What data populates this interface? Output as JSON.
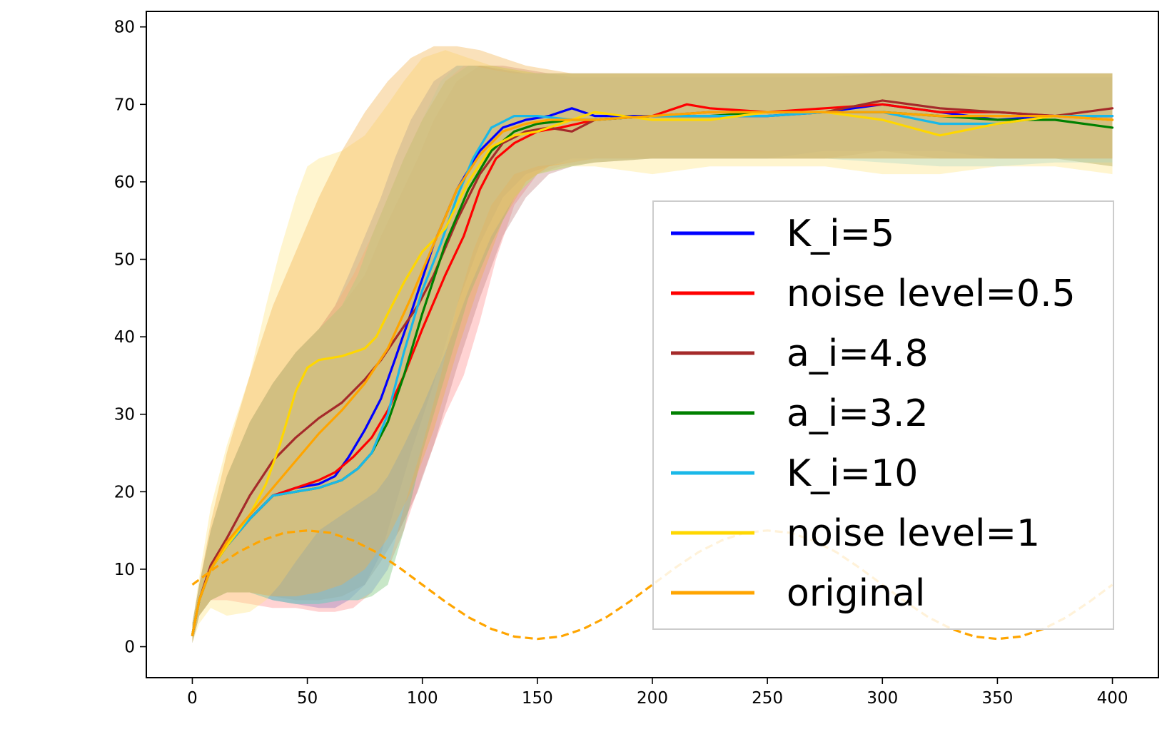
{
  "chart_data": {
    "type": "line",
    "title": "",
    "xlabel": "",
    "ylabel": "",
    "xlim": [
      -20,
      420
    ],
    "ylim": [
      -4,
      82
    ],
    "xticks": [
      0,
      50,
      100,
      150,
      200,
      250,
      300,
      350,
      400
    ],
    "yticks": [
      0,
      10,
      20,
      30,
      40,
      50,
      60,
      70,
      80
    ],
    "legend_position": "lower-right",
    "grid": false,
    "series": [
      {
        "name": "K_i=5",
        "color": "#0000ff",
        "band_color": "#4f6fe0",
        "x": [
          0,
          3,
          8,
          15,
          25,
          35,
          45,
          55,
          62,
          68,
          75,
          82,
          88,
          95,
          105,
          115,
          125,
          135,
          145,
          155,
          165,
          175,
          200,
          225,
          250,
          275,
          300,
          325,
          350,
          375,
          400
        ],
        "y": [
          1.5,
          6,
          10,
          13,
          16.5,
          19.5,
          20.5,
          21,
          22,
          24.5,
          28,
          32,
          37,
          43,
          52,
          59,
          64,
          67,
          68,
          68.5,
          69.5,
          68.5,
          68.5,
          68.5,
          68.5,
          69,
          70,
          69,
          68,
          68.5,
          68.5
        ],
        "lower": [
          0.5,
          4,
          6,
          7,
          7,
          6,
          5.5,
          5,
          5,
          6,
          8,
          12,
          18,
          25,
          34,
          44,
          52,
          58,
          61,
          62,
          63,
          63,
          63,
          63,
          63,
          64,
          64,
          64,
          63,
          63,
          63
        ],
        "upper": [
          3,
          8,
          15,
          22,
          29,
          34,
          38,
          41,
          44,
          48,
          53,
          58,
          63,
          68,
          73,
          75,
          75,
          74.5,
          74,
          74,
          73.5,
          73.5,
          73.5,
          73.5,
          73.5,
          73.5,
          74,
          74,
          73.5,
          73.5,
          73.5
        ]
      },
      {
        "name": "noise level=0.5",
        "color": "#ff0000",
        "band_color": "#ff8c8c",
        "x": [
          0,
          3,
          8,
          15,
          25,
          35,
          45,
          55,
          62,
          70,
          78,
          85,
          92,
          100,
          110,
          118,
          125,
          132,
          140,
          150,
          160,
          175,
          200,
          215,
          225,
          250,
          275,
          300,
          325,
          350,
          375,
          400
        ],
        "y": [
          1.5,
          6,
          10,
          13,
          16.5,
          19.5,
          20.5,
          21.5,
          22.5,
          24.5,
          27,
          30.5,
          35,
          41,
          48,
          53,
          59,
          63,
          65,
          66.5,
          67,
          68,
          68.5,
          70,
          69.5,
          69,
          69.5,
          70,
          69,
          69,
          68.5,
          68
        ],
        "lower": [
          0.5,
          4,
          6,
          6,
          5.5,
          5,
          5,
          4.5,
          4.5,
          5,
          7,
          10,
          15,
          22,
          30,
          35,
          42,
          50,
          57,
          61,
          62,
          62.5,
          63,
          63,
          63,
          63,
          63,
          63,
          63,
          63,
          63,
          62
        ],
        "upper": [
          3,
          8,
          15,
          22,
          29,
          34,
          38,
          41,
          44,
          48,
          53,
          58,
          63,
          68,
          73,
          75,
          75,
          74.5,
          74,
          74,
          74,
          74,
          74,
          74,
          74,
          74,
          74,
          74,
          74,
          74,
          74,
          74
        ]
      },
      {
        "name": "a_i=4.8",
        "color": "#a52a2a",
        "band_color": "#c08080",
        "x": [
          0,
          3,
          8,
          15,
          25,
          35,
          45,
          55,
          65,
          75,
          82,
          90,
          98,
          105,
          115,
          125,
          135,
          145,
          155,
          165,
          175,
          200,
          225,
          250,
          275,
          300,
          325,
          350,
          375,
          400
        ],
        "y": [
          1.5,
          6,
          10.5,
          14,
          19.5,
          24,
          27,
          29.5,
          31.5,
          34.5,
          37,
          40.5,
          44,
          48,
          55,
          61,
          65,
          66.5,
          67,
          66.5,
          68,
          68.5,
          69,
          69,
          69,
          70.5,
          69.5,
          69,
          68.5,
          69.5
        ],
        "lower": [
          0.5,
          4,
          6,
          7,
          7,
          6.5,
          6,
          6,
          6.5,
          8,
          11,
          15,
          20,
          26,
          36,
          45,
          53,
          58,
          61,
          62,
          62.5,
          63,
          63,
          63,
          63,
          64,
          63,
          63,
          63,
          63
        ],
        "upper": [
          3,
          8,
          15,
          22,
          29,
          34,
          38,
          41,
          44,
          48,
          53,
          58,
          63,
          68,
          73,
          75,
          75,
          74.5,
          74,
          74,
          74,
          74,
          74,
          74,
          74,
          74,
          74,
          74,
          74,
          74
        ]
      },
      {
        "name": "a_i=3.2",
        "color": "#008000",
        "band_color": "#6fbf6f",
        "x": [
          0,
          3,
          8,
          15,
          25,
          35,
          45,
          55,
          65,
          72,
          78,
          85,
          92,
          100,
          110,
          120,
          130,
          140,
          150,
          165,
          175,
          200,
          225,
          250,
          275,
          300,
          325,
          350,
          375,
          400
        ],
        "y": [
          1.5,
          6,
          10,
          13,
          16.5,
          19.5,
          20,
          20.5,
          21.5,
          23,
          25,
          29,
          35,
          43,
          52,
          59,
          64,
          66.5,
          67.5,
          68,
          68,
          68.5,
          68.5,
          69,
          69,
          69,
          68.5,
          68,
          68,
          67
        ],
        "lower": [
          0.5,
          4,
          6,
          7,
          7,
          6,
          5.5,
          5.5,
          6,
          6,
          6.5,
          8,
          15,
          25,
          35,
          45,
          52,
          58,
          61,
          62,
          62.5,
          63,
          63,
          63,
          63,
          63,
          63,
          63,
          63,
          62
        ],
        "upper": [
          3,
          8,
          15,
          22,
          29,
          34,
          38,
          41,
          44,
          48,
          53,
          58,
          63,
          68,
          73,
          75,
          75,
          74.5,
          74,
          74,
          74,
          74,
          74,
          74,
          74,
          74,
          74,
          74,
          74,
          74
        ]
      },
      {
        "name": "K_i=10",
        "color": "#1ab8e8",
        "band_color": "#7fd0f0",
        "x": [
          0,
          3,
          8,
          15,
          25,
          35,
          45,
          55,
          65,
          72,
          78,
          85,
          92,
          100,
          108,
          115,
          122,
          130,
          140,
          150,
          165,
          175,
          200,
          225,
          250,
          275,
          300,
          325,
          350,
          375,
          400
        ],
        "y": [
          1.5,
          6,
          10,
          13,
          16.5,
          19.5,
          20,
          20.5,
          21.5,
          23,
          25,
          30,
          38,
          46,
          52,
          58,
          63,
          67,
          68.5,
          68.5,
          68,
          68,
          68.5,
          68.5,
          68.5,
          69,
          69,
          67.5,
          67.5,
          68.5,
          68.5
        ],
        "lower": [
          0.5,
          4,
          6,
          7,
          7,
          6,
          5.5,
          5.5,
          6,
          6,
          7,
          10,
          18,
          26,
          35,
          44,
          51,
          57,
          61,
          62,
          62.5,
          63,
          63,
          63,
          63,
          63,
          62.5,
          62,
          62,
          62.5,
          62.5
        ],
        "upper": [
          3,
          8,
          15,
          22,
          29,
          34,
          38,
          41,
          44,
          48,
          53,
          58,
          63,
          68,
          73,
          75,
          75,
          74.5,
          74,
          74,
          74,
          74,
          74,
          74,
          74,
          74,
          74,
          74,
          74,
          74,
          74
        ]
      },
      {
        "name": "noise level=1",
        "color": "#ffd700",
        "band_color": "#ffe480",
        "x": [
          0,
          3,
          8,
          15,
          25,
          32,
          38,
          45,
          50,
          55,
          65,
          75,
          80,
          85,
          92,
          100,
          110,
          120,
          130,
          140,
          150,
          165,
          175,
          200,
          225,
          250,
          275,
          300,
          325,
          350,
          375,
          400
        ],
        "y": [
          1.5,
          6,
          10,
          13,
          17,
          21,
          26,
          33,
          36,
          37,
          37.5,
          38.5,
          40,
          43,
          47,
          51,
          54,
          60,
          64.5,
          66,
          66.5,
          68,
          69,
          68,
          68,
          69,
          69,
          68,
          66,
          67.5,
          68.5,
          68
        ],
        "lower": [
          0.5,
          3,
          5,
          4,
          4.5,
          6,
          8,
          11,
          13,
          15,
          17,
          19,
          20,
          22,
          26,
          31,
          38,
          46,
          53,
          58,
          61,
          62,
          62,
          61,
          62,
          62,
          62,
          61,
          61,
          62,
          62,
          61
        ],
        "upper": [
          3,
          9,
          18,
          26,
          35,
          44,
          51,
          58,
          62,
          63,
          64,
          66,
          68,
          70,
          73,
          76,
          77,
          76,
          75,
          74.5,
          74,
          74,
          74,
          74,
          74,
          74,
          74,
          74,
          74,
          74,
          74,
          74
        ]
      },
      {
        "name": "original",
        "color": "#ffa500",
        "band_color": "#f2b04a",
        "x": [
          0,
          3,
          8,
          15,
          25,
          35,
          45,
          55,
          65,
          75,
          85,
          95,
          105,
          115,
          125,
          135,
          145,
          155,
          165,
          175,
          200,
          225,
          250,
          275,
          300,
          325,
          350,
          375,
          400
        ],
        "y": [
          1.5,
          6,
          10,
          13.5,
          17,
          20.5,
          24,
          27.5,
          30.5,
          34,
          38.5,
          45,
          52,
          59,
          63.5,
          66.5,
          67.5,
          68,
          68,
          68,
          68.5,
          69,
          69,
          69,
          69,
          68.5,
          68.5,
          68.5,
          68
        ],
        "lower": [
          0.5,
          4,
          6,
          7,
          7,
          6.5,
          6.5,
          7,
          8,
          10,
          14,
          20,
          28,
          38,
          47,
          55,
          60,
          62,
          62.5,
          63,
          63,
          63,
          63,
          63,
          63,
          63,
          63,
          63,
          63
        ],
        "upper": [
          3,
          8,
          16,
          25,
          35,
          44,
          51,
          58,
          64,
          69,
          73,
          76,
          77.5,
          77.5,
          77,
          76,
          75,
          74.5,
          74,
          74,
          74,
          74,
          74,
          74,
          74,
          74,
          74,
          74,
          74
        ]
      }
    ],
    "reference_curve": {
      "style": "dashed",
      "color": "#ffa500",
      "x": [
        0,
        10,
        20,
        30,
        40,
        50,
        60,
        70,
        80,
        90,
        100,
        110,
        120,
        130,
        140,
        150,
        160,
        170,
        180,
        190,
        200,
        210,
        220,
        230,
        240,
        250,
        260,
        270,
        280,
        290,
        300,
        310,
        320,
        330,
        340,
        350,
        360,
        370,
        380,
        390,
        400
      ],
      "y": [
        8,
        10.2,
        12.2,
        13.7,
        14.7,
        15,
        14.7,
        13.7,
        12.2,
        10.2,
        8,
        5.8,
        3.8,
        2.3,
        1.3,
        1,
        1.3,
        2.3,
        3.8,
        5.8,
        8,
        10.2,
        12.2,
        13.7,
        14.7,
        15,
        14.7,
        13.7,
        12.2,
        10.2,
        8,
        5.8,
        3.8,
        2.3,
        1.3,
        1,
        1.3,
        2.3,
        3.8,
        5.8,
        8
      ]
    }
  }
}
